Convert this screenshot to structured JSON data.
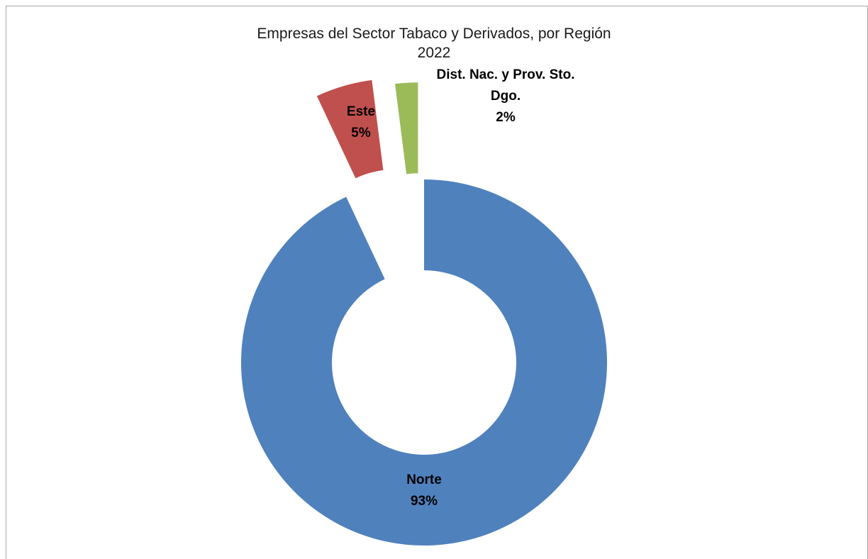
{
  "chart_data": {
    "type": "pie",
    "variant": "exploded-doughnut",
    "title": "Empresas del Sector Tabaco y Derivados, por Región",
    "subtitle": "2022",
    "legend": "none",
    "slices": [
      {
        "label": "Norte",
        "value": 93,
        "value_label": "93%",
        "color": "#4f81bd"
      },
      {
        "label": "Este",
        "value": 5,
        "value_label": "5%",
        "color": "#c0504d"
      },
      {
        "label": "Dist. Nac. y Prov. Sto. Dgo.",
        "value": 2,
        "value_label": "2%",
        "color": "#9bbb59"
      }
    ]
  }
}
